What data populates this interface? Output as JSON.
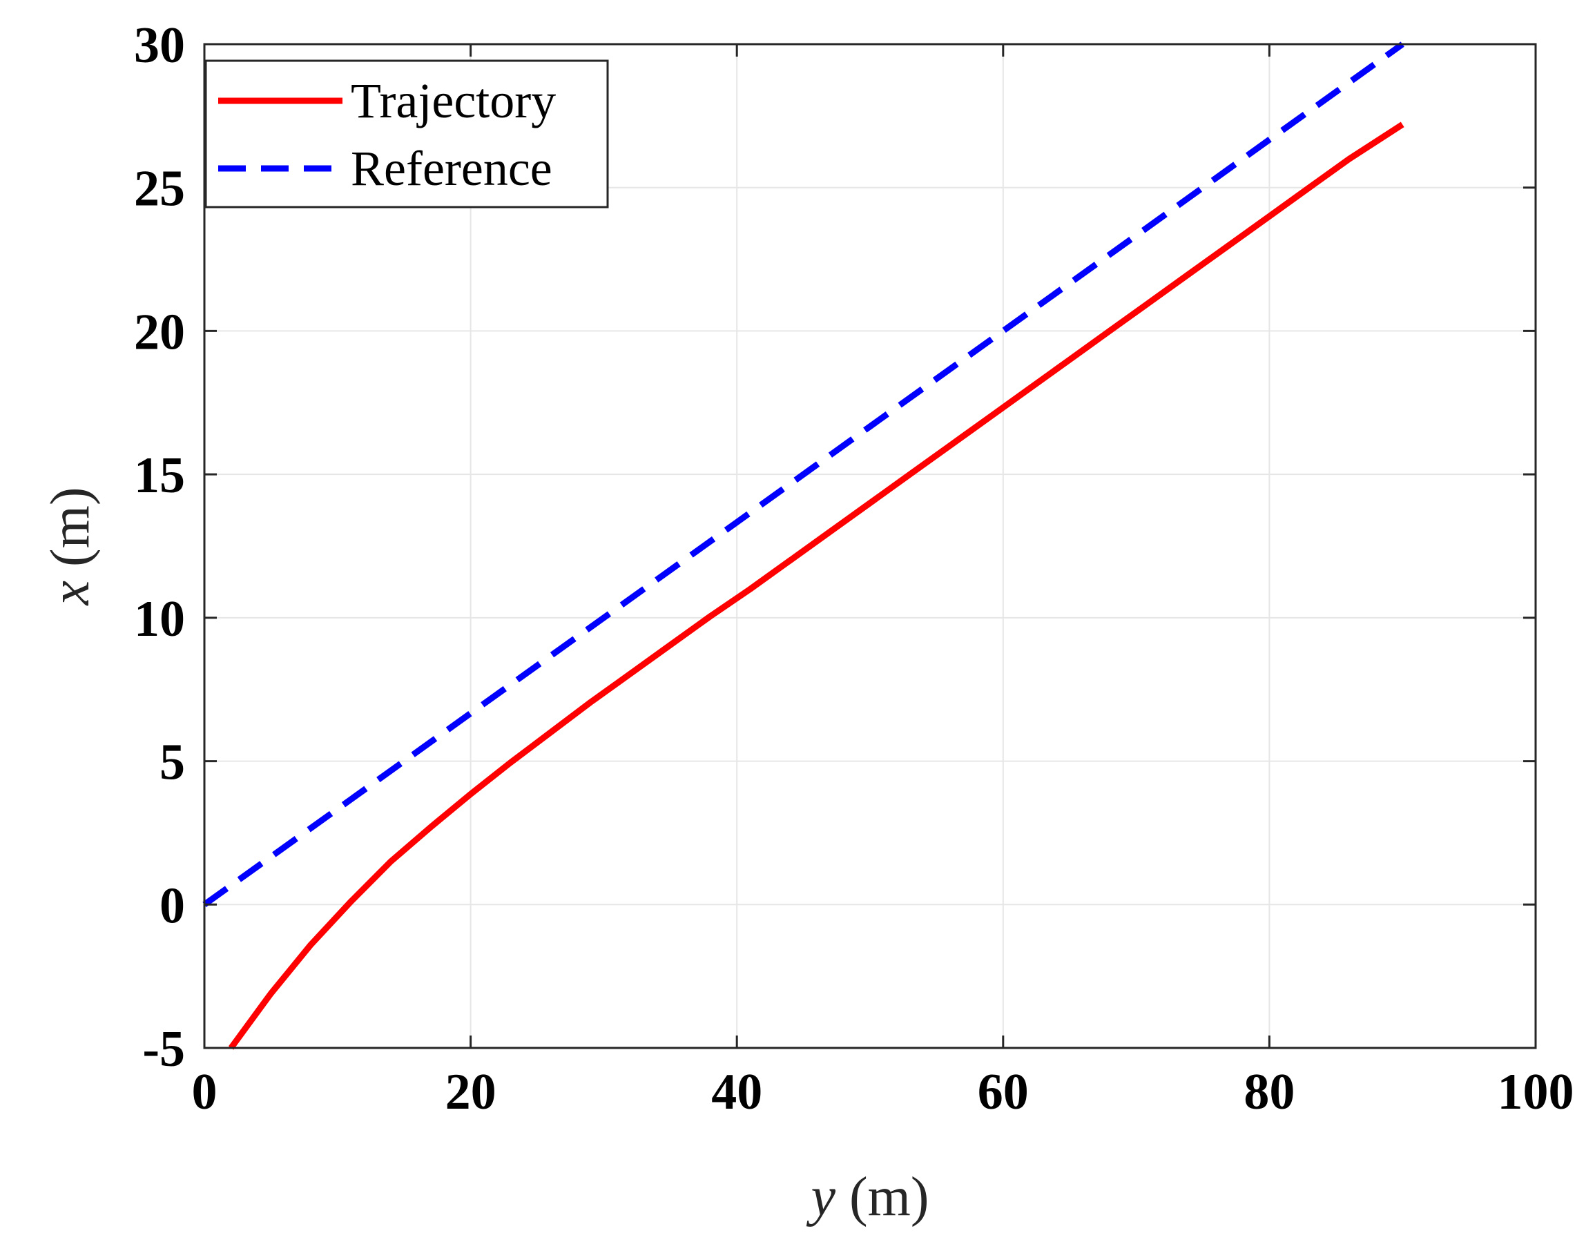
{
  "chart_data": {
    "type": "line",
    "title": "",
    "xlabel": "y (m)",
    "ylabel": "x (m)",
    "xlabel_var": "y",
    "xlabel_unit": "(m)",
    "ylabel_var": "x",
    "ylabel_unit": "(m)",
    "xlim": [
      0,
      100
    ],
    "ylim": [
      -5,
      30
    ],
    "xticks": [
      0,
      20,
      40,
      60,
      80,
      100
    ],
    "yticks": [
      -5,
      0,
      5,
      10,
      15,
      20,
      25,
      30
    ],
    "xtick_labels": [
      "0",
      "20",
      "40",
      "60",
      "80",
      "100"
    ],
    "ytick_labels": [
      "-5",
      "0",
      "5",
      "10",
      "15",
      "20",
      "25",
      "30"
    ],
    "grid": true,
    "legend_position": "top-left",
    "series": [
      {
        "name": "Trajectory",
        "color": "#ff0000",
        "style": "solid",
        "x": [
          2,
          5,
          8,
          11,
          14,
          17,
          20,
          23,
          26,
          29,
          32,
          35,
          38,
          41,
          44,
          47,
          50,
          53,
          56,
          59,
          62,
          65,
          68,
          71,
          74,
          77,
          80,
          83,
          86,
          90
        ],
        "y": [
          -5.0,
          -3.1,
          -1.4,
          0.1,
          1.5,
          2.7,
          3.85,
          4.95,
          6.0,
          7.05,
          8.05,
          9.05,
          10.05,
          11.0,
          12.0,
          13.0,
          14.0,
          15.0,
          16.0,
          17.0,
          18.0,
          19.0,
          20.0,
          21.0,
          22.0,
          23.0,
          24.0,
          25.0,
          26.0,
          27.2
        ]
      },
      {
        "name": "Reference",
        "color": "#0000ff",
        "style": "dashed",
        "x": [
          0,
          10,
          20,
          30,
          40,
          50,
          60,
          70,
          80,
          90
        ],
        "y": [
          0.0,
          3.33,
          6.67,
          10.0,
          13.33,
          16.67,
          20.0,
          23.33,
          26.67,
          30.0
        ]
      }
    ]
  }
}
